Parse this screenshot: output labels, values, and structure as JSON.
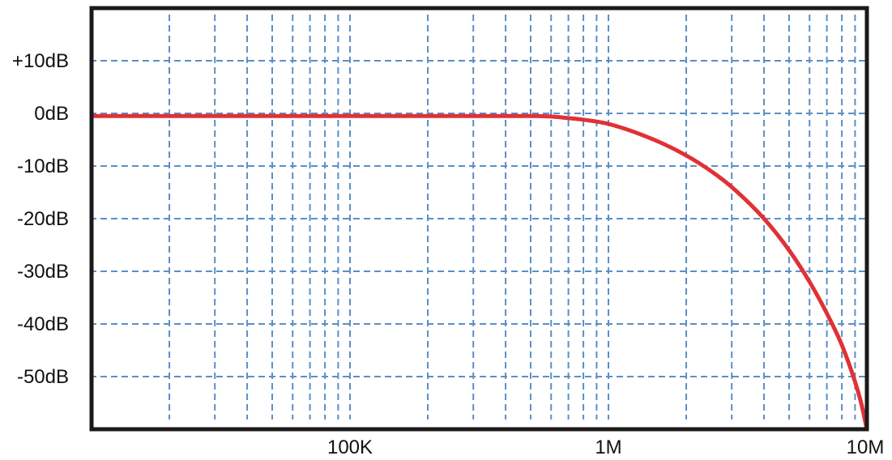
{
  "chart_data": {
    "type": "line",
    "title": "",
    "xlabel": "",
    "ylabel": "",
    "x_scale": "log",
    "xlim": [
      10000,
      10000000
    ],
    "ylim": [
      -60,
      20
    ],
    "y_ticks": [
      {
        "value": 10,
        "label": "+10dB"
      },
      {
        "value": 0,
        "label": "0dB"
      },
      {
        "value": -10,
        "label": "-10dB"
      },
      {
        "value": -20,
        "label": "-20dB"
      },
      {
        "value": -30,
        "label": "-30dB"
      },
      {
        "value": -40,
        "label": "-40dB"
      },
      {
        "value": -50,
        "label": "-50dB"
      }
    ],
    "x_ticks": [
      {
        "value": 100000,
        "label": "100K"
      },
      {
        "value": 1000000,
        "label": "1M"
      },
      {
        "value": 10000000,
        "label": "10M"
      }
    ],
    "x_minor_grid": [
      20000,
      30000,
      40000,
      50000,
      60000,
      70000,
      80000,
      90000,
      100000,
      200000,
      300000,
      400000,
      500000,
      600000,
      700000,
      800000,
      900000,
      1000000,
      2000000,
      3000000,
      4000000,
      5000000,
      6000000,
      7000000,
      8000000,
      9000000
    ],
    "grid": true,
    "series": [
      {
        "color": "#e03236",
        "x": [
          10000,
          100000,
          500000,
          600000,
          700000,
          800000,
          1000000,
          1500000,
          2000000,
          2500000,
          3000000,
          4000000,
          5000000,
          6000000,
          7000000,
          8000000,
          9000000,
          9500000,
          10000000
        ],
        "y": [
          -0.5,
          -0.5,
          -0.5,
          -0.6,
          -0.9,
          -1.2,
          -2,
          -5,
          -8,
          -11,
          -14,
          -20,
          -26,
          -32,
          -38,
          -44,
          -51,
          -55,
          -60
        ]
      }
    ],
    "colors": {
      "grid": "#5b8fc7",
      "frame": "#1a1a1a",
      "curve": "#e03236"
    }
  }
}
